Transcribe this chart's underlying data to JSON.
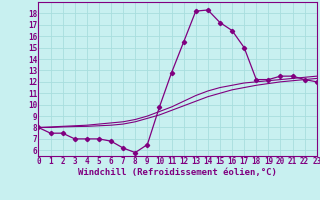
{
  "xlabel": "Windchill (Refroidissement éolien,°C)",
  "bg_color": "#c8f0f0",
  "line_color": "#800080",
  "grid_color": "#a8dede",
  "hours": [
    0,
    1,
    2,
    3,
    4,
    5,
    6,
    7,
    8,
    9,
    10,
    11,
    12,
    13,
    14,
    15,
    16,
    17,
    18,
    19,
    20,
    21,
    22,
    23
  ],
  "temp_main": [
    8.0,
    7.5,
    7.5,
    7.0,
    7.0,
    7.0,
    6.8,
    6.2,
    5.8,
    6.5,
    9.8,
    12.8,
    15.5,
    18.2,
    18.3,
    17.2,
    16.5,
    15.0,
    12.2,
    12.2,
    12.5,
    12.5,
    12.2,
    12.0
  ],
  "temp_line2": [
    8.0,
    8.05,
    8.1,
    8.15,
    8.2,
    8.3,
    8.4,
    8.5,
    8.7,
    9.0,
    9.4,
    9.8,
    10.3,
    10.8,
    11.2,
    11.5,
    11.7,
    11.9,
    12.0,
    12.1,
    12.2,
    12.3,
    12.4,
    12.5
  ],
  "temp_line3": [
    8.0,
    8.0,
    8.05,
    8.08,
    8.1,
    8.15,
    8.2,
    8.3,
    8.5,
    8.8,
    9.1,
    9.5,
    9.9,
    10.3,
    10.7,
    11.0,
    11.3,
    11.5,
    11.7,
    11.85,
    12.0,
    12.1,
    12.2,
    12.3
  ],
  "xlim": [
    0,
    23
  ],
  "ylim": [
    5.5,
    19.0
  ],
  "yticks": [
    6,
    7,
    8,
    9,
    10,
    11,
    12,
    13,
    14,
    15,
    16,
    17,
    18
  ],
  "xticks": [
    0,
    1,
    2,
    3,
    4,
    5,
    6,
    7,
    8,
    9,
    10,
    11,
    12,
    13,
    14,
    15,
    16,
    17,
    18,
    19,
    20,
    21,
    22,
    23
  ],
  "tick_fontsize": 5.5,
  "label_fontsize": 6.5
}
